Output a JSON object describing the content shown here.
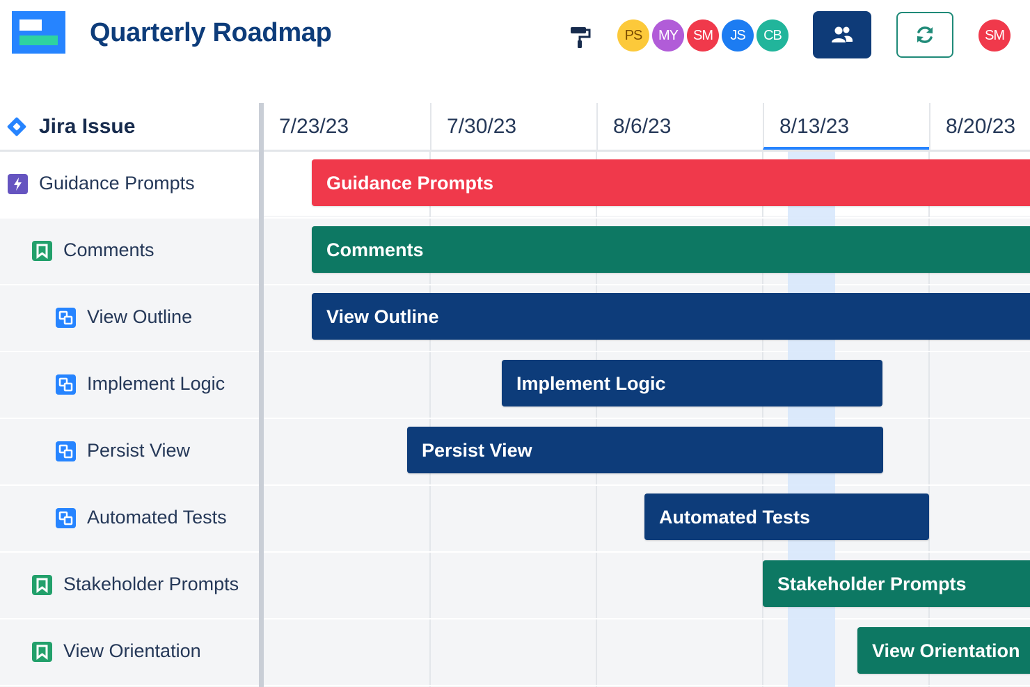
{
  "colors": {
    "navy": "#0d3c7a",
    "red": "#f0394b",
    "green": "#0d7863",
    "blue": "#0d3c7a",
    "accent": "#2684ff",
    "today_band": "#d6e6fb"
  },
  "header": {
    "title": "Quarterly Roadmap",
    "logo_icon": "roadmap-logo-icon",
    "format_icon": "paint-roller-icon",
    "team_icon": "users-icon",
    "refresh_icon": "refresh-icon",
    "collaborators": [
      {
        "initials": "PS",
        "bg": "#fcc93a",
        "fg": "#7a4b00"
      },
      {
        "initials": "MY",
        "bg": "#b15cd8",
        "fg": "#ffffff"
      },
      {
        "initials": "SM",
        "bg": "#f0394b",
        "fg": "#ffffff"
      },
      {
        "initials": "JS",
        "bg": "#1c7cf2",
        "fg": "#ffffff"
      },
      {
        "initials": "CB",
        "bg": "#21b59b",
        "fg": "#ffffff"
      }
    ],
    "current_user": {
      "initials": "SM",
      "bg": "#f0394b",
      "fg": "#ffffff"
    }
  },
  "issues_panel": {
    "header_label": "Jira Issue",
    "header_icon": "jira-diamond-icon",
    "items": [
      {
        "label": "Guidance Prompts",
        "type": "epic",
        "icon": "epic-lightning-icon",
        "indent": 0
      },
      {
        "label": "Comments",
        "type": "story",
        "icon": "story-bookmark-icon",
        "indent": 1
      },
      {
        "label": "View Outline",
        "type": "subtask",
        "icon": "subtask-icon",
        "indent": 2
      },
      {
        "label": "Implement Logic",
        "type": "subtask",
        "icon": "subtask-icon",
        "indent": 2
      },
      {
        "label": "Persist View",
        "type": "subtask",
        "icon": "subtask-icon",
        "indent": 2
      },
      {
        "label": "Automated Tests",
        "type": "subtask",
        "icon": "subtask-icon",
        "indent": 2
      },
      {
        "label": "Stakeholder Prompts",
        "type": "story",
        "icon": "story-bookmark-icon",
        "indent": 1
      },
      {
        "label": "View Orientation",
        "type": "story",
        "icon": "story-bookmark-icon",
        "indent": 1
      }
    ]
  },
  "timeline": {
    "weeks": [
      "7/23/23",
      "7/30/23",
      "8/6/23",
      "8/13/23",
      "8/20/23"
    ],
    "current_week": "8/13/23",
    "bars": [
      {
        "label": "Guidance Prompts",
        "color": "red",
        "start_week": 0.29,
        "end_week": 5.2
      },
      {
        "label": "Comments",
        "color": "green",
        "start_week": 0.29,
        "end_week": 5.2
      },
      {
        "label": "View Outline",
        "color": "blue",
        "start_week": 0.29,
        "end_week": 5.2
      },
      {
        "label": "Implement Logic",
        "color": "blue",
        "start_week": 1.43,
        "end_week": 3.72
      },
      {
        "label": "Persist View",
        "color": "blue",
        "start_week": 0.86,
        "end_week": 3.72
      },
      {
        "label": "Automated Tests",
        "color": "blue",
        "start_week": 2.29,
        "end_week": 4.0
      },
      {
        "label": "Stakeholder Prompts",
        "color": "green",
        "start_week": 3.0,
        "end_week": 5.2
      },
      {
        "label": "View Orientation",
        "color": "green",
        "start_week": 3.57,
        "end_week": 5.2
      }
    ]
  }
}
